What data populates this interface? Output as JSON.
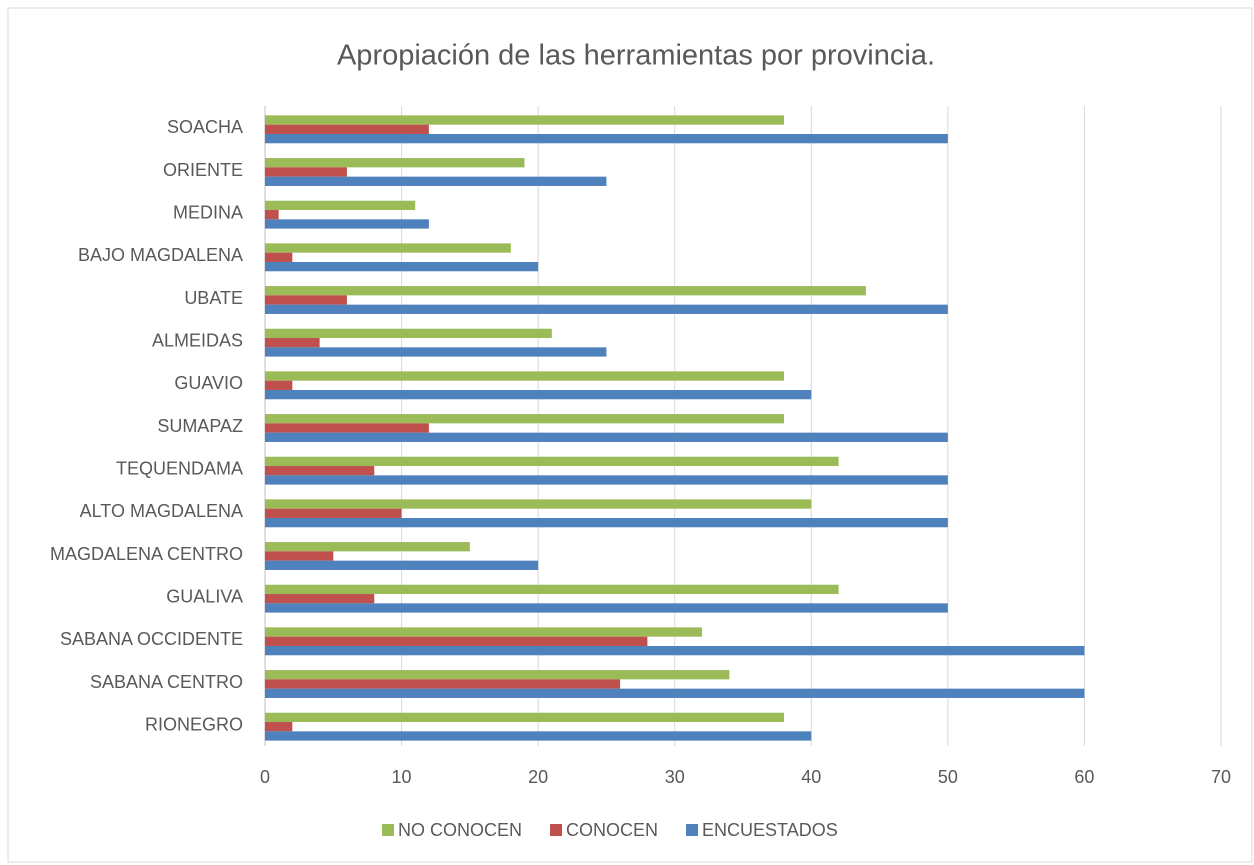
{
  "chart_data": {
    "type": "hbar",
    "title": "Apropiación de las herramientas por provincia.",
    "categories": [
      "SOACHA",
      "ORIENTE",
      "MEDINA",
      "BAJO MAGDALENA",
      "UBATE",
      "ALMEIDAS",
      "GUAVIO",
      "SUMAPAZ",
      "TEQUENDAMA",
      "ALTO MAGDALENA",
      "MAGDALENA CENTRO",
      "GUALIVA",
      "SABANA OCCIDENTE",
      "SABANA CENTRO",
      "RIONEGRO"
    ],
    "series": [
      {
        "name": "NO CONOCEN",
        "color": "#9BBB59",
        "values": [
          38,
          19,
          11,
          18,
          44,
          21,
          38,
          38,
          42,
          40,
          15,
          42,
          32,
          34,
          38
        ]
      },
      {
        "name": "CONOCEN",
        "color": "#C0504D",
        "values": [
          12,
          6,
          1,
          2,
          6,
          4,
          2,
          12,
          8,
          10,
          5,
          8,
          28,
          26,
          2
        ]
      },
      {
        "name": "ENCUESTADOS",
        "color": "#4F81BD",
        "values": [
          50,
          25,
          12,
          20,
          50,
          25,
          40,
          50,
          50,
          50,
          20,
          50,
          60,
          60,
          40
        ]
      }
    ],
    "xlim": [
      0,
      70
    ],
    "xticks": [
      0,
      10,
      20,
      30,
      40,
      50,
      60,
      70
    ],
    "grid": true,
    "legend": "bottom"
  }
}
